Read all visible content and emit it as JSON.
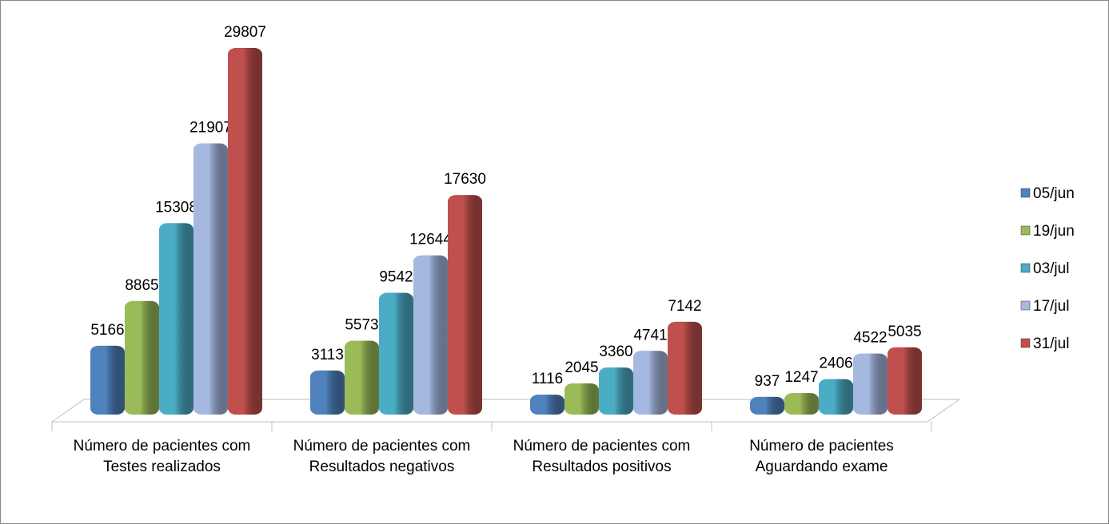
{
  "chart_data": {
    "type": "bar",
    "categories": [
      "Número de pacientes com Testes realizados",
      "Número de pacientes com Resultados negativos",
      "Número de pacientes com Resultados positivos",
      "Número de pacientes Aguardando exame"
    ],
    "series": [
      {
        "name": "05/jun",
        "color": "#4f81bd",
        "values": [
          5166,
          3113,
          1116,
          937
        ]
      },
      {
        "name": "19/jun",
        "color": "#9bbb59",
        "values": [
          8865,
          5573,
          2045,
          1247
        ]
      },
      {
        "name": "03/jul",
        "color": "#4bacc6",
        "values": [
          15308,
          9542,
          3360,
          2406
        ]
      },
      {
        "name": "17/jul",
        "color": "#a5b8e0",
        "values": [
          21907,
          12644,
          4741,
          4522
        ]
      },
      {
        "name": "31/jul",
        "color": "#c0504d",
        "values": [
          29807,
          17630,
          7142,
          5035
        ]
      }
    ],
    "legend": "right"
  }
}
